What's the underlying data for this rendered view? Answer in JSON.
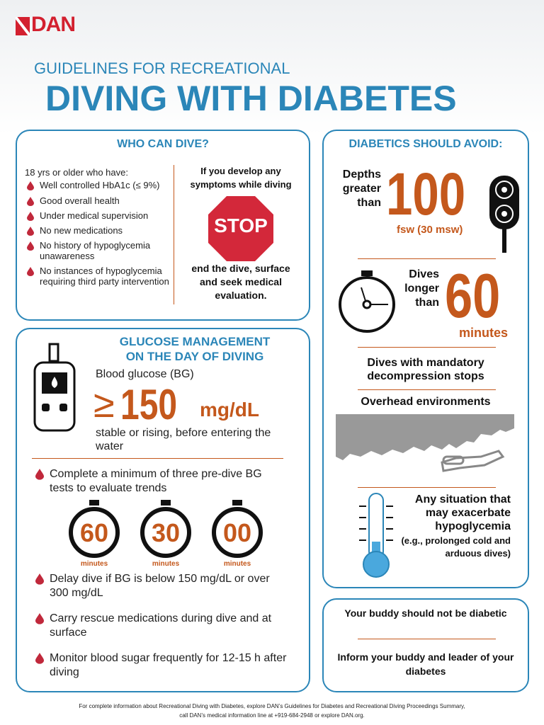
{
  "header": {
    "logo": "DAN",
    "subtitle": "GUIDELINES FOR RECREATIONAL",
    "title": "DIVING WITH DIABETES"
  },
  "who_can_dive": {
    "heading": "WHO CAN DIVE?",
    "intro": "18 yrs or older who have:",
    "items": [
      "Well controlled HbA1c (≤ 9%)",
      "Good overall health",
      "Under medical supervision",
      "No new medications",
      "No history of hypoglycemia unawareness",
      "No instances of hypoglycemia requiring third party intervention"
    ],
    "stop_top": "If you develop any symptoms while diving",
    "stop_sign": "STOP",
    "stop_bottom": "end the dive, surface and seek medical evaluation."
  },
  "glucose": {
    "heading_lines": [
      "GLUCOSE MANAGEMENT",
      "ON THE DAY OF DIVING"
    ],
    "bg_label": "Blood glucose (BG)",
    "bg_symbol": "≥",
    "bg_value": 150,
    "bg_unit": "mg/dL",
    "bg_note": "stable or rising, before entering the water",
    "tests": "Complete a minimum of three pre-dive BG tests to evaluate trends",
    "timers": [
      {
        "number": "60",
        "label": "minutes"
      },
      {
        "number": "30",
        "label": "minutes"
      },
      {
        "number": "00",
        "label": "minutes"
      }
    ],
    "items": [
      "Delay dive if BG is below 150 mg/dL or over 300 mg/dL",
      "Carry rescue medications during dive and at surface",
      "Monitor blood sugar frequently for 12-15 h after diving"
    ]
  },
  "avoid": {
    "heading": "DIABETICS SHOULD AVOID:",
    "depth_text": "Depths greater than",
    "depth_value": 100,
    "depth_unit": "fsw (30 msw)",
    "duration_text": "Dives longer than",
    "duration_value": 60,
    "duration_unit": "minutes",
    "deco": "Dives with mandatory decompression stops",
    "overhead": "Overhead environments",
    "situation": "Any situation that may exacerbate hypoglycemia",
    "situation_note": "(e.g., prolonged cold and arduous dives)"
  },
  "buddy": {
    "line1": "Your buddy should not be diabetic",
    "line2": "Inform your buddy and leader of your diabetes"
  },
  "footer": {
    "lines": [
      "For complete information about Recreational  Diving with Diabetes, explore DAN’s Guidelines for Diabetes and Recreational Diving Proceedings Summary,",
      "call DAN’s medical information line at +919-684-2948 or explore DAN.org."
    ]
  }
}
